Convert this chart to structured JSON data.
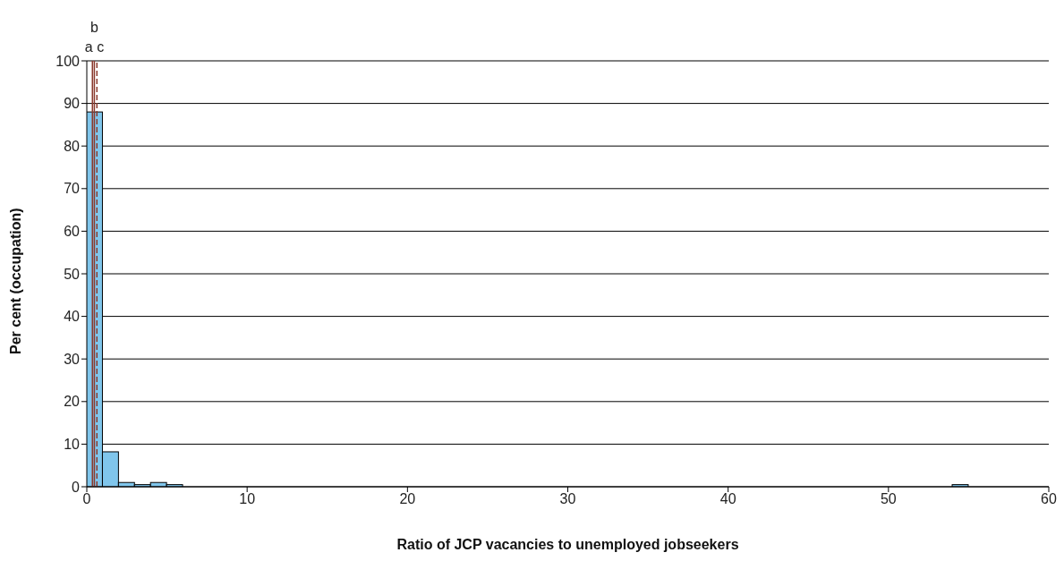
{
  "chart_data": {
    "type": "histogram",
    "xlabel": "Ratio of JCP vacancies to unemployed jobseekers",
    "ylabel": "Per cent (occupation)",
    "bins": [
      0,
      1,
      2,
      3,
      4,
      5,
      6,
      7,
      8,
      9,
      10,
      11,
      12,
      13,
      14,
      15,
      16,
      17,
      18,
      19,
      20,
      21,
      22,
      23,
      24,
      25,
      26,
      27,
      28,
      29,
      30,
      31,
      32,
      33,
      34,
      35,
      36,
      37,
      38,
      39,
      40,
      41,
      42,
      43,
      44,
      45,
      46,
      47,
      48,
      49,
      50,
      51,
      52,
      53,
      54,
      55,
      56
    ],
    "values": [
      88,
      8.2,
      1,
      0.5,
      1,
      0.5,
      0,
      0,
      0,
      0,
      0,
      0,
      0,
      0,
      0,
      0,
      0,
      0,
      0,
      0,
      0,
      0,
      0,
      0,
      0,
      0,
      0,
      0,
      0,
      0,
      0,
      0,
      0,
      0,
      0,
      0,
      0,
      0,
      0,
      0,
      0,
      0,
      0,
      0,
      0,
      0,
      0,
      0,
      0,
      0,
      0,
      0,
      0,
      0,
      0.5,
      0
    ],
    "color": "#80c6ec",
    "xlim": [
      0,
      60
    ],
    "xticks": [
      0,
      10,
      20,
      30,
      40,
      50,
      60
    ],
    "ylim": [
      0,
      100
    ],
    "yticks": [
      0,
      10,
      20,
      30,
      40,
      50,
      60,
      70,
      80,
      90,
      100
    ],
    "grid": "y",
    "ref_lines": [
      {
        "axis": "x",
        "value": 0.35,
        "label": "a",
        "color": "#8b3a2e",
        "line_style": "solid"
      },
      {
        "axis": "x",
        "value": 0.47,
        "label": "b",
        "color": "#8b3a2e",
        "line_style": "solid"
      },
      {
        "axis": "x",
        "value": 0.63,
        "label": "c",
        "color": "#8b3a2e",
        "line_style": "dashed"
      }
    ]
  }
}
